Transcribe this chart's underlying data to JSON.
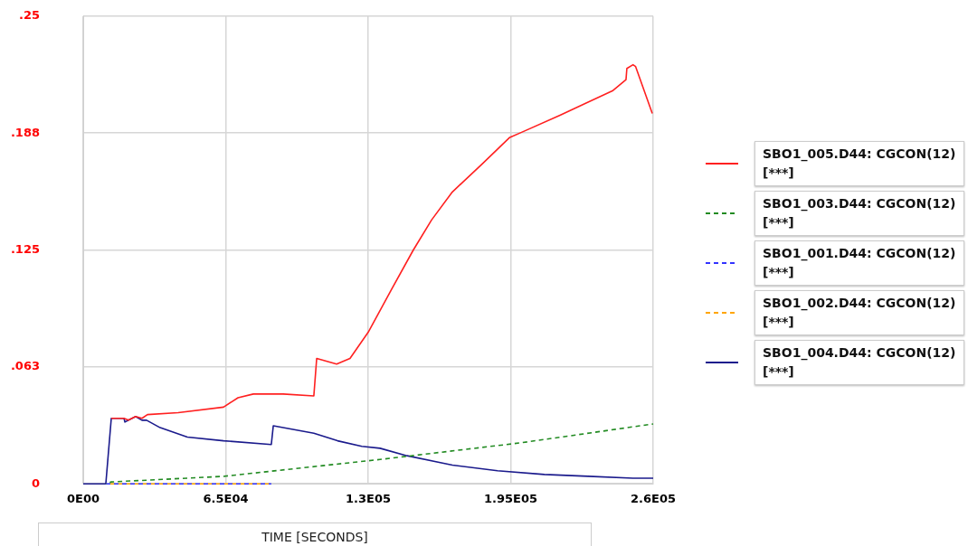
{
  "chart_data": {
    "type": "line",
    "xlabel": "TIME [SECONDS]",
    "xlim": [
      0,
      260000
    ],
    "xticks": [
      {
        "value": 0,
        "label": "0E00"
      },
      {
        "value": 65000,
        "label": "6.5E04"
      },
      {
        "value": 130000,
        "label": "1.3E05"
      },
      {
        "value": 195000,
        "label": "1.95E05"
      },
      {
        "value": 260000,
        "label": "2.6E05"
      }
    ],
    "ylim": [
      0,
      0.25
    ],
    "yticks": [
      {
        "value": 0,
        "label": "0"
      },
      {
        "value": 0.0625,
        "label": ".063"
      },
      {
        "value": 0.125,
        "label": ".125"
      },
      {
        "value": 0.1875,
        "label": ".188"
      },
      {
        "value": 0.25,
        "label": ".25"
      }
    ],
    "grid": true,
    "legend": "right",
    "marker": "none",
    "series": [
      {
        "name": "SBO1_005.D44: CGCON(12) [***]",
        "color": "#ff2020",
        "line_style": "solid",
        "x": [
          12800,
          18600,
          20600,
          23900,
          26800,
          29300,
          43300,
          64000,
          70600,
          77600,
          91200,
          105200,
          106500,
          115600,
          121700,
          130000,
          140700,
          150600,
          158900,
          168400,
          182000,
          194400,
          200200,
          217500,
          230300,
          241400,
          247600,
          248000,
          250800,
          252000,
          259600
        ],
        "values": [
          0.035,
          0.035,
          0.034,
          0.036,
          0.035,
          0.037,
          0.038,
          0.041,
          0.046,
          0.048,
          0.048,
          0.047,
          0.067,
          0.064,
          0.067,
          0.081,
          0.104,
          0.125,
          0.141,
          0.156,
          0.171,
          0.185,
          0.188,
          0.197,
          0.204,
          0.21,
          0.216,
          0.222,
          0.224,
          0.223,
          0.198
        ]
      },
      {
        "name": "SBO1_003.D44: CGCON(12) [***]",
        "color": "#228b22",
        "line_style": "dashed",
        "x": [
          10300,
          12800,
          64000,
          135400,
          200200,
          260000
        ],
        "values": [
          0,
          0.001,
          0.004,
          0.013,
          0.022,
          0.032
        ]
      },
      {
        "name": "SBO1_001.D44: CGCON(12) [***]",
        "color": "#3333ff",
        "line_style": "dashed",
        "x": [
          10300,
          85800
        ],
        "values": [
          0,
          0
        ]
      },
      {
        "name": "SBO1_002.D44: CGCON(12) [***]",
        "color": "#ffa500",
        "line_style": "dashed",
        "x": [
          10300,
          85800
        ],
        "values": [
          0,
          0
        ]
      },
      {
        "name": "SBO1_004.D44: CGCON(12) [***]",
        "color": "#1a1a8c",
        "line_style": "solid",
        "x": [
          0,
          10300,
          12800,
          18600,
          19000,
          23900,
          26800,
          28900,
          35100,
          47500,
          64000,
          85800,
          86700,
          105200,
          116000,
          127100,
          135400,
          147700,
          168400,
          189000,
          210400,
          230300,
          250800,
          260000
        ],
        "values": [
          0,
          0,
          0.035,
          0.035,
          0.033,
          0.036,
          0.034,
          0.034,
          0.03,
          0.025,
          0.023,
          0.021,
          0.031,
          0.027,
          0.023,
          0.02,
          0.019,
          0.015,
          0.01,
          0.007,
          0.005,
          0.004,
          0.003,
          0.003
        ]
      }
    ]
  }
}
